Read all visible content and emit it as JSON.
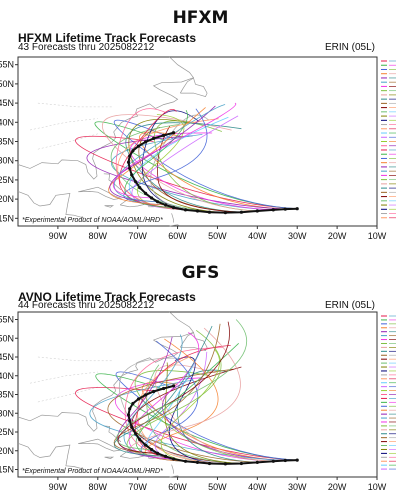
{
  "panels": [
    {
      "heading": "HFXM",
      "title": "HFXM Lifetime Track Forecasts",
      "subtitle": "43 Forecasts thru 2025082212",
      "storm": "ERIN (05L)",
      "credit": "*Experimental Product of NOAA/AOML/HRD*",
      "chart_data": {
        "type": "line",
        "title": "HFXM Lifetime Track Forecasts",
        "xlabel": "",
        "ylabel": "",
        "xlim": [
          -100,
          -10
        ],
        "ylim": [
          13,
          57
        ],
        "xticks": [
          "90W",
          "80W",
          "70W",
          "60W",
          "50W",
          "40W",
          "30W",
          "20W",
          "10W"
        ],
        "yticks": [
          "15N",
          "20N",
          "25N",
          "30N",
          "35N",
          "40N",
          "45N",
          "50N",
          "55N"
        ],
        "best_track": {
          "lon": [
            -30,
            -33,
            -36,
            -40,
            -44,
            -48,
            -52,
            -55,
            -58,
            -61,
            -63,
            -65,
            -66.5,
            -68,
            -69.5,
            -70.5,
            -71.5,
            -72,
            -72.3,
            -72,
            -71.2,
            -69.8,
            -68,
            -66,
            -63.5,
            -61
          ],
          "lat": [
            17.5,
            17.4,
            17.2,
            16.9,
            16.6,
            16.5,
            16.6,
            16.9,
            17.2,
            17.8,
            18.5,
            19.3,
            20.3,
            21.5,
            23,
            24.5,
            26.3,
            28,
            29.6,
            31.2,
            32.6,
            33.8,
            34.9,
            35.8,
            36.6,
            37.3
          ]
        },
        "forecast_spread": {
          "turn_lon_min": -75,
          "turn_lon_max": -62,
          "end_lat_min": 35,
          "end_lat_max": 45
        }
      }
    },
    {
      "heading": "GFS",
      "title": "AVNO Lifetime Track Forecasts",
      "subtitle": "44 Forecasts thru 2025082212",
      "storm": "ERIN (05L)",
      "credit": "*Experimental Product of NOAA/AOML/HRD*",
      "chart_data": {
        "type": "line",
        "title": "AVNO Lifetime Track Forecasts",
        "xlabel": "",
        "ylabel": "",
        "xlim": [
          -100,
          -10
        ],
        "ylim": [
          13,
          57
        ],
        "xticks": [
          "90W",
          "80W",
          "70W",
          "60W",
          "50W",
          "40W",
          "30W",
          "20W",
          "10W"
        ],
        "yticks": [
          "15N",
          "20N",
          "25N",
          "30N",
          "35N",
          "40N",
          "45N",
          "50N",
          "55N"
        ],
        "best_track": {
          "lon": [
            -30,
            -33,
            -36,
            -40,
            -44,
            -48,
            -52,
            -55,
            -58,
            -61,
            -63,
            -65,
            -66.5,
            -68,
            -69.5,
            -70.5,
            -71.5,
            -72,
            -72.3,
            -72,
            -71.2,
            -69.8,
            -68,
            -66,
            -63.5,
            -61
          ],
          "lat": [
            17.5,
            17.4,
            17.2,
            16.9,
            16.6,
            16.5,
            16.6,
            16.9,
            17.2,
            17.8,
            18.5,
            19.3,
            20.3,
            21.5,
            23,
            24.5,
            26.3,
            28,
            29.6,
            31.2,
            32.6,
            33.8,
            34.9,
            35.8,
            36.6,
            37.3
          ]
        },
        "forecast_spread": {
          "turn_lon_min": -75,
          "turn_lon_max": -58,
          "end_lat_min": 36,
          "end_lat_max": 55
        }
      }
    }
  ],
  "colors": {
    "best_track": "#111111",
    "forecasts": [
      "#e6194b",
      "#3cb44b",
      "#4363d8",
      "#f58231",
      "#911eb4",
      "#46a0c8",
      "#f032e6",
      "#7fbf3f",
      "#e8a0a0",
      "#2e8b8b",
      "#9a6324",
      "#800000",
      "#6fbf6f",
      "#808000",
      "#000075",
      "#a9a9a9",
      "#ff9966",
      "#66ccff",
      "#cc66ff",
      "#99cc33",
      "#ff6699"
    ],
    "land_outline": "#9a9a9a"
  }
}
